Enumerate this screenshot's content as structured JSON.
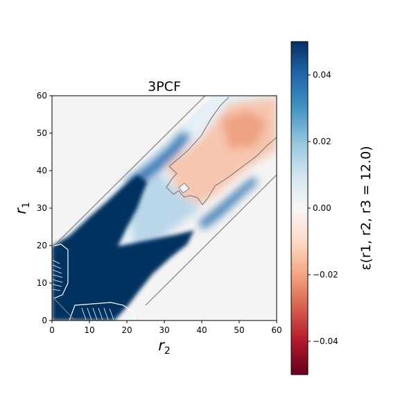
{
  "chart_data": {
    "type": "heatmap",
    "title": "3PCF",
    "xlabel_base": "r",
    "xlabel_sub": "2",
    "ylabel_base": "r",
    "ylabel_sub": "1",
    "xlim": [
      0,
      60
    ],
    "ylim": [
      0,
      60
    ],
    "xticks": [
      "0",
      "10",
      "20",
      "30",
      "40",
      "50",
      "60"
    ],
    "yticks": [
      "0",
      "10",
      "20",
      "30",
      "40",
      "50",
      "60"
    ],
    "colorbar": {
      "label": "ε(r1, r2, r3 = 12.0)",
      "vmin": -0.05,
      "vmax": 0.05,
      "ticks": [
        "0.04",
        "0.02",
        "0.00",
        "−0.02",
        "−0.04"
      ],
      "tick_values": [
        0.04,
        0.02,
        0.0,
        -0.02,
        -0.04
      ],
      "colormap": "RdBu"
    },
    "description_values": {
      "masked_region": "outside |r1 - r2| < 12",
      "background_color": "#f4f4f4",
      "contour_color_outer": "#808080",
      "contour_color_inner": "#ffffff"
    }
  }
}
